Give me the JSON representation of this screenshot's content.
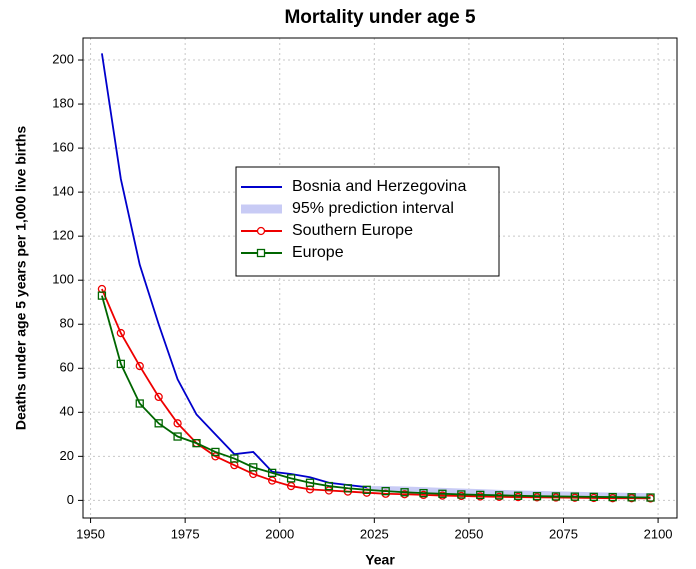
{
  "chart_data": {
    "type": "line",
    "title": "Mortality under age 5",
    "xlabel": "Year",
    "ylabel": "Deaths under age 5 years per 1,000 live births",
    "x": [
      1953,
      1958,
      1963,
      1968,
      1973,
      1978,
      1983,
      1988,
      1993,
      1998,
      2003,
      2008,
      2013,
      2018,
      2023,
      2028,
      2033,
      2038,
      2043,
      2048,
      2053,
      2058,
      2063,
      2068,
      2073,
      2078,
      2083,
      2088,
      2093,
      2098
    ],
    "series": [
      {
        "name": "Bosnia and Herzegovina",
        "color": "#0000cc",
        "marker": null,
        "values": [
          203,
          146,
          107,
          80,
          55,
          39,
          30,
          21,
          22,
          13,
          12,
          10.5,
          8,
          7,
          6,
          5.5,
          5,
          4.5,
          4,
          3.5,
          3.2,
          3,
          2.8,
          2.6,
          2.4,
          2.2,
          2.1,
          2,
          1.9,
          1.8
        ]
      },
      {
        "name": "95% prediction interval",
        "color": "#c8cbf5",
        "lower": [
          null,
          null,
          null,
          null,
          null,
          null,
          null,
          null,
          null,
          null,
          null,
          null,
          null,
          null,
          4.5,
          3.8,
          3.3,
          2.8,
          2.4,
          2.1,
          1.8,
          1.6,
          1.4,
          1.2,
          1.1,
          1,
          0.9,
          0.8,
          0.7,
          0.7
        ],
        "upper": [
          null,
          null,
          null,
          null,
          null,
          null,
          null,
          null,
          null,
          null,
          null,
          null,
          null,
          null,
          6.5,
          6.5,
          6.3,
          6,
          5.7,
          5.4,
          5.1,
          4.8,
          4.5,
          4.3,
          4.1,
          3.9,
          3.7,
          3.5,
          3.4,
          3.3
        ]
      },
      {
        "name": "Southern Europe",
        "color": "#ee0000",
        "marker": "circle",
        "values": [
          96,
          76,
          61,
          47,
          35,
          26,
          20,
          16,
          12,
          9,
          6.5,
          5,
          4.5,
          4,
          3.5,
          3,
          2.8,
          2.5,
          2.2,
          2,
          1.8,
          1.6,
          1.5,
          1.4,
          1.3,
          1.2,
          1.1,
          1,
          1,
          0.9
        ]
      },
      {
        "name": "Europe",
        "color": "#006600",
        "marker": "square",
        "values": [
          93,
          62,
          44,
          35,
          29,
          26,
          22,
          19,
          15,
          12.5,
          10,
          8,
          6.5,
          5.5,
          4.8,
          4.2,
          3.7,
          3.3,
          3,
          2.7,
          2.5,
          2.3,
          2.1,
          1.9,
          1.8,
          1.7,
          1.6,
          1.5,
          1.4,
          1.3
        ]
      }
    ],
    "xlim": [
      1948,
      2105
    ],
    "ylim": [
      -8,
      210
    ],
    "xticks": [
      1950,
      1975,
      2000,
      2025,
      2050,
      2075,
      2100
    ],
    "yticks": [
      0,
      20,
      40,
      60,
      80,
      100,
      120,
      140,
      160,
      180,
      200
    ],
    "grid": true,
    "legend": "upper center"
  }
}
